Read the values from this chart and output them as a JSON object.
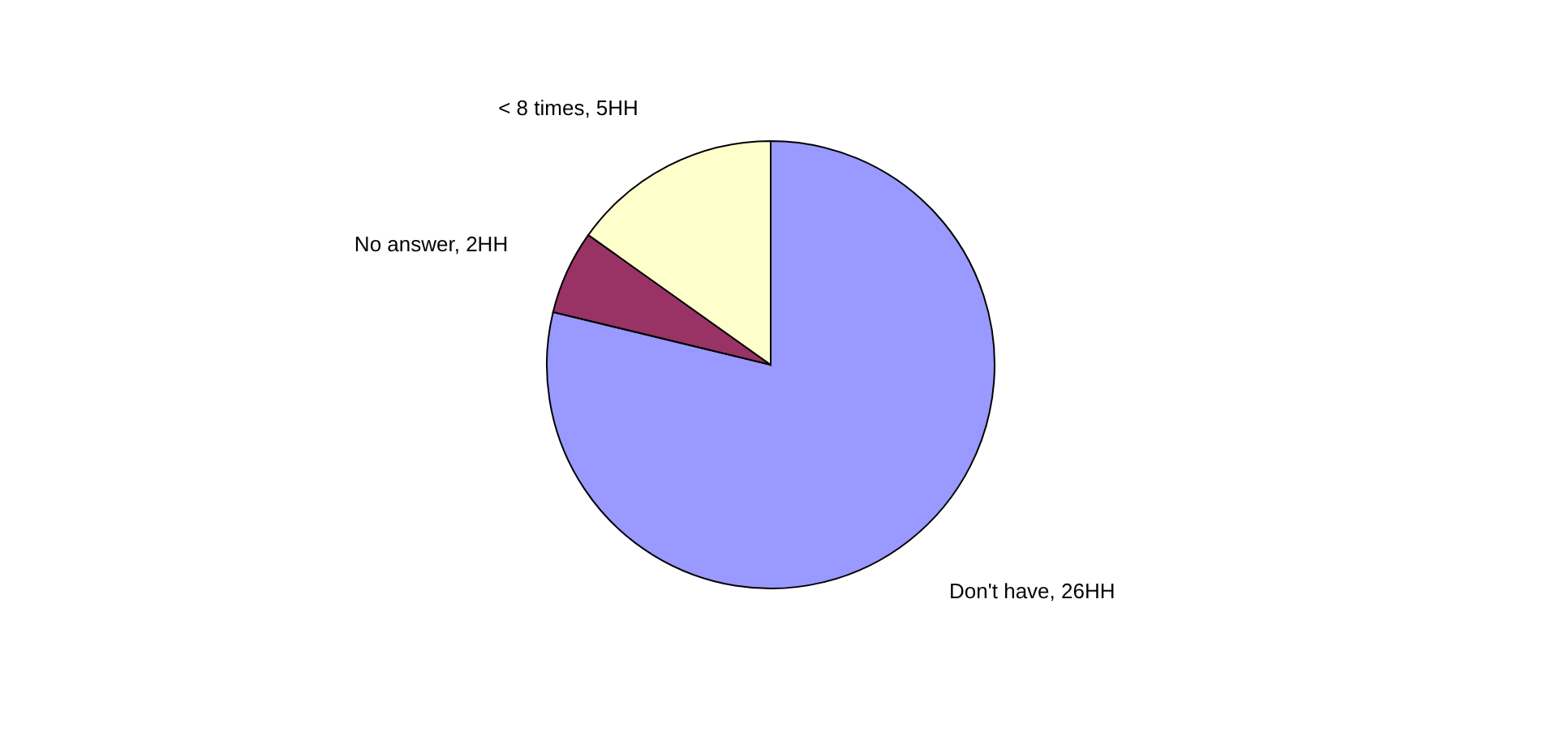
{
  "chart_data": {
    "type": "pie",
    "categories": [
      "Don't have",
      "No answer",
      "< 8 times"
    ],
    "values": [
      26,
      2,
      5
    ],
    "value_labels": [
      "26HH",
      "2HH",
      "5HH"
    ],
    "colors": [
      "#9999ff",
      "#993366",
      "#ffffcc"
    ],
    "legend": false
  }
}
